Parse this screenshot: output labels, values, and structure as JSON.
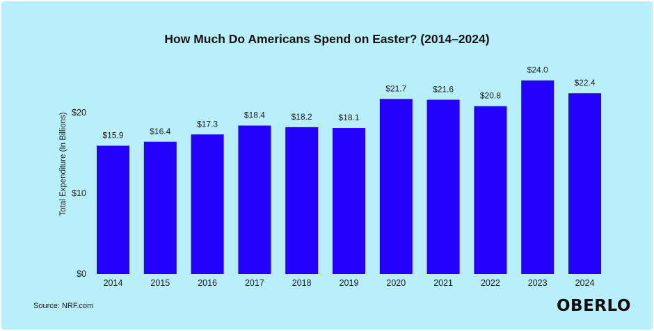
{
  "chart_data": {
    "type": "bar",
    "title": "How Much Do Americans Spend on Easter? (2014–2024)",
    "ylabel": "Total Expenditure (In Billions)",
    "xlabel": "",
    "categories": [
      "2014",
      "2015",
      "2016",
      "2017",
      "2018",
      "2019",
      "2020",
      "2021",
      "2022",
      "2023",
      "2024"
    ],
    "values": [
      15.9,
      16.4,
      17.3,
      18.4,
      18.2,
      18.1,
      21.7,
      21.6,
      20.8,
      24.0,
      22.4
    ],
    "value_labels": [
      "$15.9",
      "$16.4",
      "$17.3",
      "$18.4",
      "$18.2",
      "$18.1",
      "$21.7",
      "$21.6",
      "$20.8",
      "$24.0",
      "$22.4"
    ],
    "yticks": [
      0,
      10,
      20
    ],
    "ytick_labels": [
      "$0",
      "$10",
      "$20"
    ],
    "ylim": [
      0,
      24
    ],
    "grid": false,
    "legend": "none",
    "bar_color": "#2400ff"
  },
  "source": "Source: NRF.com",
  "logo": "OBERLO",
  "colors": {
    "background": "#b9effa",
    "bar": "#2400ff",
    "text": "#111111"
  }
}
